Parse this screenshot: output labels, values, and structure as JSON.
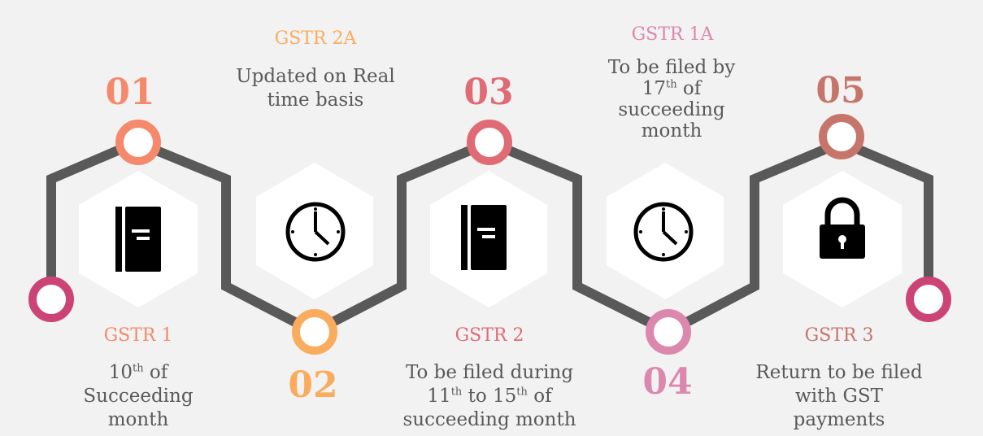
{
  "colors": {
    "step1": "#f4896b",
    "step2": "#f9ac5d",
    "step3": "#e06b75",
    "step4": "#dc87ad",
    "step5": "#c6756a",
    "ends": "#cc4476",
    "path": "#595959",
    "text": "#595959"
  },
  "steps": [
    {
      "number": "01",
      "title": "GSTR 1",
      "icon": "book-icon",
      "desc_lines": [
        {
          "pre": "10",
          "sup": "th",
          "post": " of"
        },
        {
          "pre": "Succeeding",
          "sup": "",
          "post": ""
        },
        {
          "pre": "month",
          "sup": "",
          "post": ""
        }
      ]
    },
    {
      "number": "02",
      "title": "GSTR 2A",
      "icon": "clock-icon",
      "desc_lines": [
        {
          "pre": "Updated on Real",
          "sup": "",
          "post": ""
        },
        {
          "pre": "time basis",
          "sup": "",
          "post": ""
        }
      ]
    },
    {
      "number": "03",
      "title": "GSTR 2",
      "icon": "book-icon",
      "desc_lines": [
        {
          "pre": "To be filed during",
          "sup": "",
          "post": ""
        },
        {
          "pre": "11",
          "sup": "th",
          "post": " to 15",
          "sup2": "th",
          "post2": " of"
        },
        {
          "pre": "succeeding month",
          "sup": "",
          "post": ""
        }
      ]
    },
    {
      "number": "04",
      "title": "GSTR 1A",
      "icon": "clock-icon",
      "desc_lines": [
        {
          "pre": "To be filed by",
          "sup": "",
          "post": ""
        },
        {
          "pre": "17",
          "sup": "th",
          "post": " of"
        },
        {
          "pre": "succeeding",
          "sup": "",
          "post": ""
        },
        {
          "pre": "month",
          "sup": "",
          "post": ""
        }
      ]
    },
    {
      "number": "05",
      "title": "GSTR 3",
      "icon": "lock-icon",
      "desc_lines": [
        {
          "pre": "Return to be filed",
          "sup": "",
          "post": ""
        },
        {
          "pre": "with GST",
          "sup": "",
          "post": ""
        },
        {
          "pre": "payments",
          "sup": "",
          "post": ""
        }
      ]
    }
  ]
}
